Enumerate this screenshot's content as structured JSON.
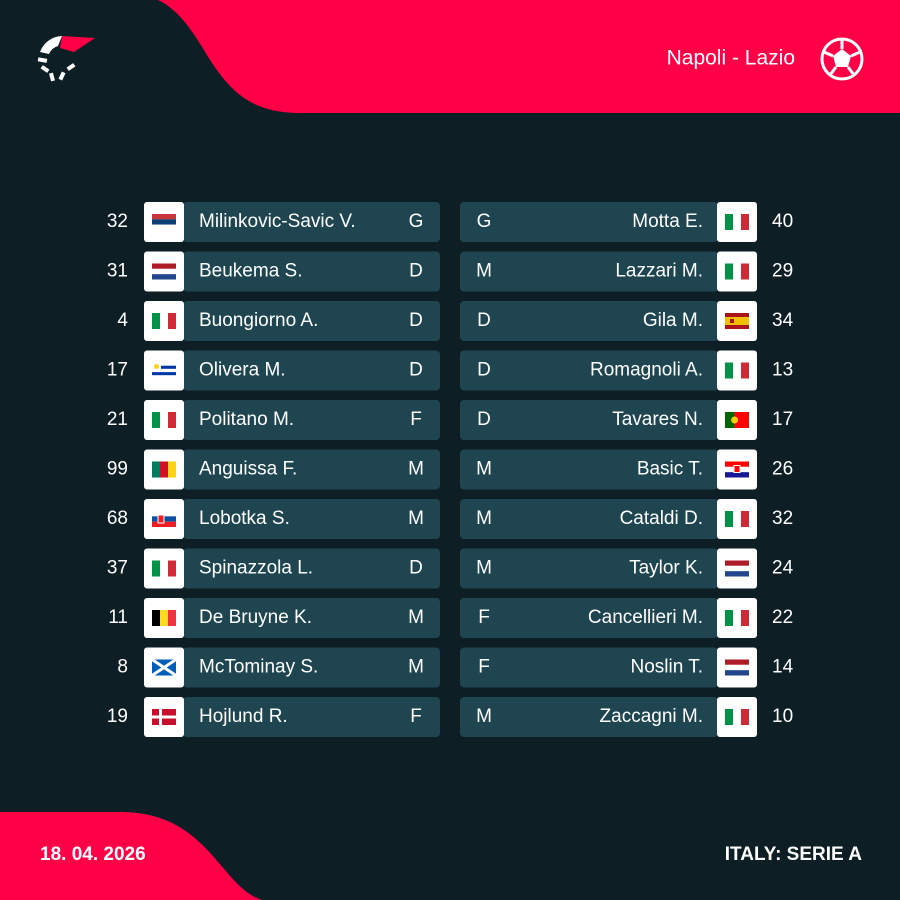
{
  "header": {
    "match": "Napoli - Lazio"
  },
  "home": {
    "players": [
      {
        "number": "32",
        "name": "Milinkovic-Savic V.",
        "position": "G"
      },
      {
        "number": "31",
        "name": "Beukema S.",
        "position": "D"
      },
      {
        "number": "4",
        "name": "Buongiorno A.",
        "position": "D"
      },
      {
        "number": "17",
        "name": "Olivera M.",
        "position": "D"
      },
      {
        "number": "21",
        "name": "Politano M.",
        "position": "F"
      },
      {
        "number": "99",
        "name": "Anguissa F.",
        "position": "M"
      },
      {
        "number": "68",
        "name": "Lobotka S.",
        "position": "M"
      },
      {
        "number": "37",
        "name": "Spinazzola L.",
        "position": "D"
      },
      {
        "number": "11",
        "name": "De Bruyne K.",
        "position": "M"
      },
      {
        "number": "8",
        "name": "McTominay S.",
        "position": "M"
      },
      {
        "number": "19",
        "name": "Hojlund R.",
        "position": "F"
      }
    ]
  },
  "away": {
    "players": [
      {
        "number": "40",
        "name": "Motta E.",
        "position": "G"
      },
      {
        "number": "29",
        "name": "Lazzari M.",
        "position": "M"
      },
      {
        "number": "34",
        "name": "Gila M.",
        "position": "D"
      },
      {
        "number": "13",
        "name": "Romagnoli A.",
        "position": "D"
      },
      {
        "number": "17",
        "name": "Tavares N.",
        "position": "D"
      },
      {
        "number": "26",
        "name": "Basic T.",
        "position": "M"
      },
      {
        "number": "32",
        "name": "Cataldi D.",
        "position": "M"
      },
      {
        "number": "24",
        "name": "Taylor K.",
        "position": "M"
      },
      {
        "number": "22",
        "name": "Cancellieri M.",
        "position": "F"
      },
      {
        "number": "14",
        "name": "Noslin T.",
        "position": "F"
      },
      {
        "number": "10",
        "name": "Zaccagni M.",
        "position": "M"
      }
    ]
  },
  "footer": {
    "date": "18. 04. 2026",
    "league": "ITALY: SERIE A"
  }
}
